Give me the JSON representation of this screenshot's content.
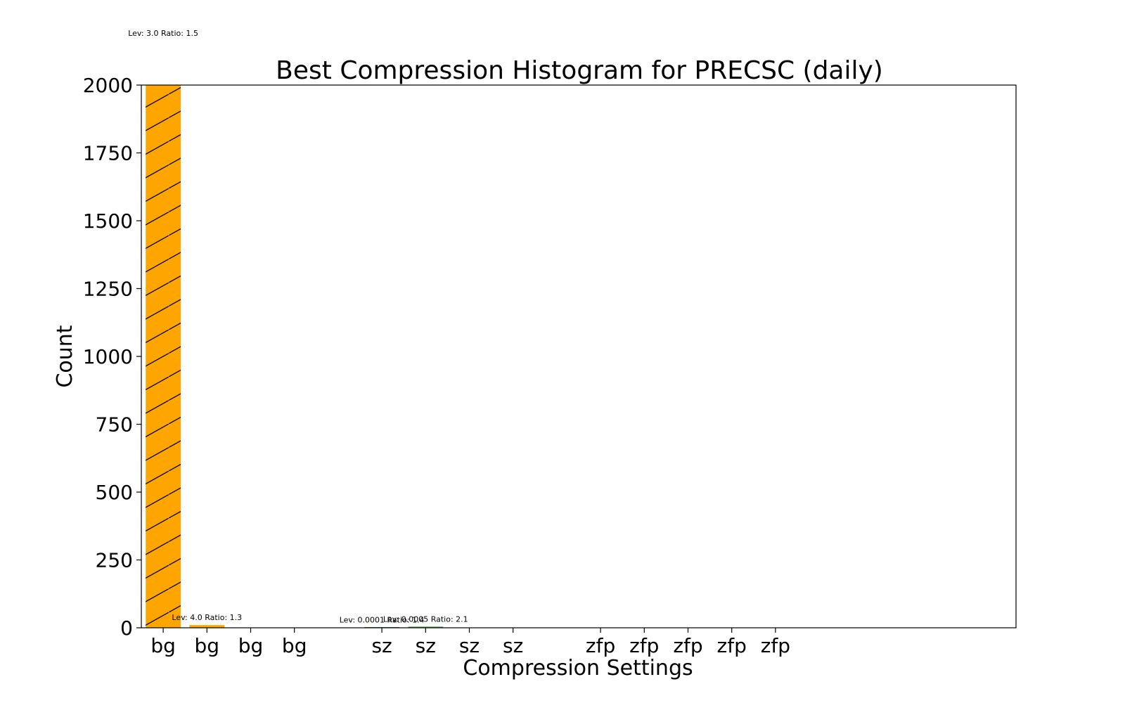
{
  "chart_data": {
    "type": "bar",
    "title": "Best Compression Histogram for PRECSC (daily)",
    "xlabel": "Compression Settings",
    "ylabel": "Count",
    "ylim": [
      0,
      2000
    ],
    "yticks": [
      0,
      250,
      500,
      750,
      1000,
      1250,
      1500,
      1750,
      2000
    ],
    "slots": 20,
    "grid": false,
    "categories": [
      {
        "label": "bg",
        "slot": 1,
        "value": 2000,
        "color": "#FFA500",
        "hatch": true,
        "annotation": "Lev: 3.0 Ratio: 1.5"
      },
      {
        "label": "bg",
        "slot": 2,
        "value": 10,
        "color": "#FFA500",
        "hatch": false,
        "annotation": "Lev: 4.0 Ratio: 1.3"
      },
      {
        "label": "bg",
        "slot": 3,
        "value": 0,
        "color": "#FFA500",
        "hatch": false,
        "annotation": ""
      },
      {
        "label": "bg",
        "slot": 4,
        "value": 0,
        "color": "#FFA500",
        "hatch": false,
        "annotation": ""
      },
      {
        "label": "sz",
        "slot": 6,
        "value": 1,
        "color": "#2ca02c",
        "hatch": false,
        "annotation": "Lev: 0.0001 Ratio: 1.4"
      },
      {
        "label": "sz",
        "slot": 7,
        "value": 4,
        "color": "#2ca02c",
        "hatch": false,
        "annotation": "Lev: 0.0005 Ratio: 2.1"
      },
      {
        "label": "sz",
        "slot": 8,
        "value": 0,
        "color": "#2ca02c",
        "hatch": false,
        "annotation": ""
      },
      {
        "label": "sz",
        "slot": 9,
        "value": 0,
        "color": "#2ca02c",
        "hatch": false,
        "annotation": ""
      },
      {
        "label": "zfp",
        "slot": 11,
        "value": 0,
        "color": "#1f77b4",
        "hatch": false,
        "annotation": ""
      },
      {
        "label": "zfp",
        "slot": 12,
        "value": 0,
        "color": "#1f77b4",
        "hatch": false,
        "annotation": ""
      },
      {
        "label": "zfp",
        "slot": 13,
        "value": 0,
        "color": "#1f77b4",
        "hatch": false,
        "annotation": ""
      },
      {
        "label": "zfp",
        "slot": 14,
        "value": 0,
        "color": "#1f77b4",
        "hatch": false,
        "annotation": ""
      },
      {
        "label": "zfp",
        "slot": 15,
        "value": 0,
        "color": "#1f77b4",
        "hatch": false,
        "annotation": ""
      }
    ]
  }
}
